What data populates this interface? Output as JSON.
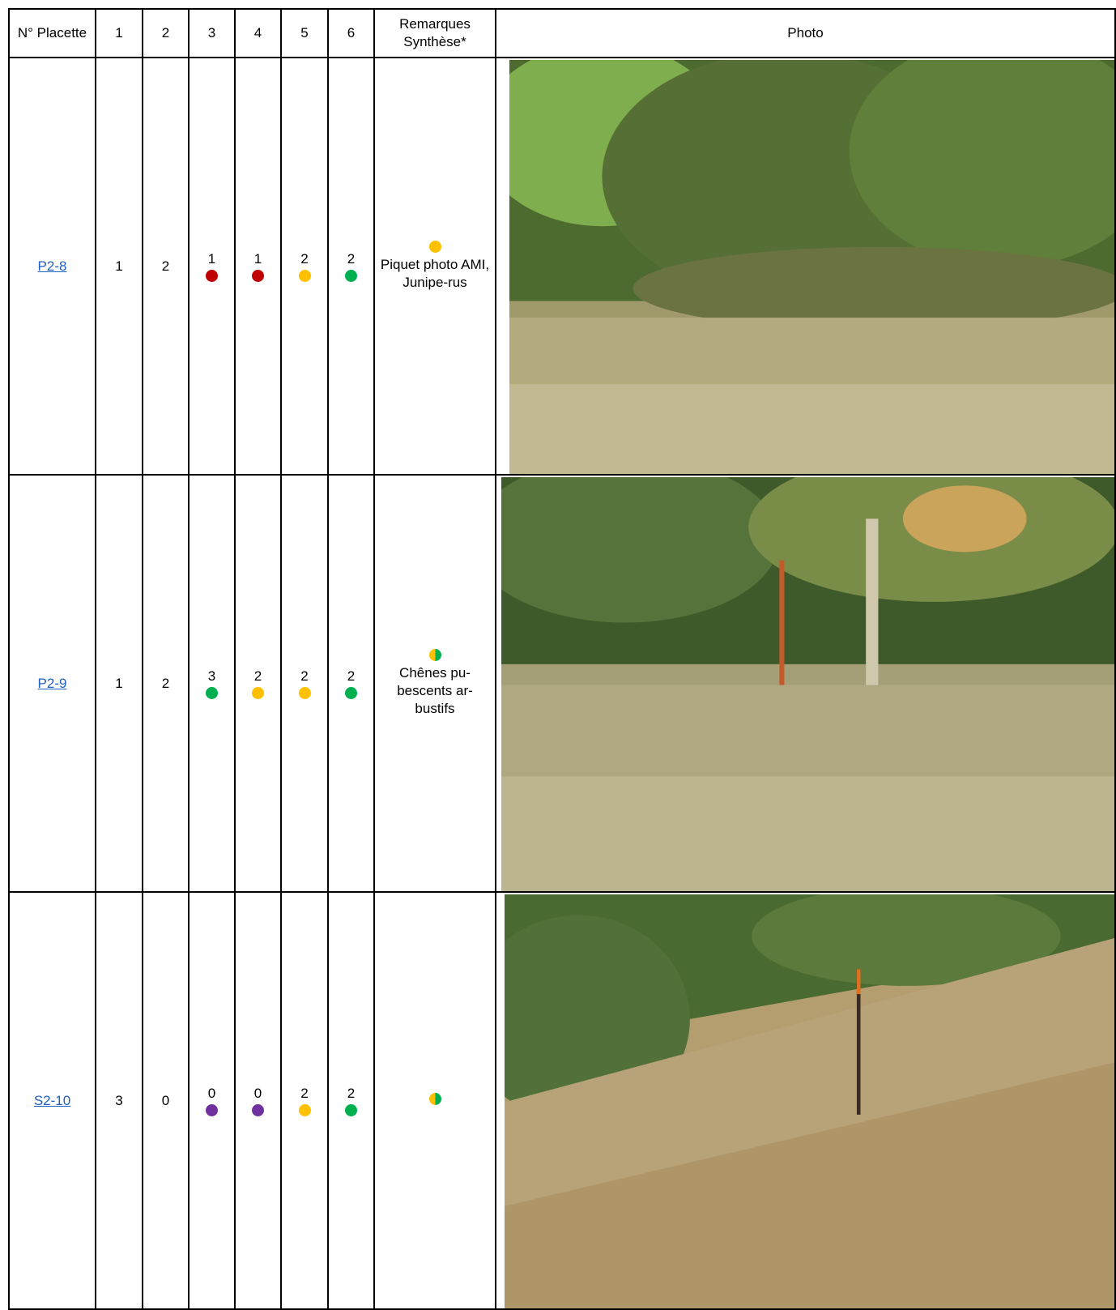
{
  "headers": {
    "placette": "N° Placette",
    "c1": "1",
    "c2": "2",
    "c3": "3",
    "c4": "4",
    "c5": "5",
    "c6": "6",
    "remarques": "Remarques Synthèse*",
    "photo": "Photo"
  },
  "rows": [
    {
      "id": "P2-8",
      "c1": "1",
      "c2": "2",
      "c3": "1",
      "c3_color": "#c00000",
      "c4": "1",
      "c4_color": "#c00000",
      "c5": "2",
      "c5_color": "#ffc000",
      "c6": "2",
      "c6_color": "#00b050",
      "synthese": "orange",
      "remark": "Piquet photo AMI, Junipe-rus",
      "photo": "shrub-juniper-photo"
    },
    {
      "id": "P2-9",
      "c1": "1",
      "c2": "2",
      "c3": "3",
      "c3_color": "#00b050",
      "c4": "2",
      "c4_color": "#ffc000",
      "c5": "2",
      "c5_color": "#ffc000",
      "c6": "2",
      "c6_color": "#00b050",
      "synthese": "orange-green",
      "remark": "Chênes pu-bescents ar-bustifs",
      "photo": "oak-shrub-photo"
    },
    {
      "id": "S2-10",
      "c1": "3",
      "c2": "0",
      "c3": "0",
      "c3_color": "#7030a0",
      "c4": "0",
      "c4_color": "#7030a0",
      "c5": "2",
      "c5_color": "#ffc000",
      "c6": "2",
      "c6_color": "#00b050",
      "synthese": "orange-green",
      "remark": "",
      "photo": "grassland-slope-photo"
    }
  ]
}
